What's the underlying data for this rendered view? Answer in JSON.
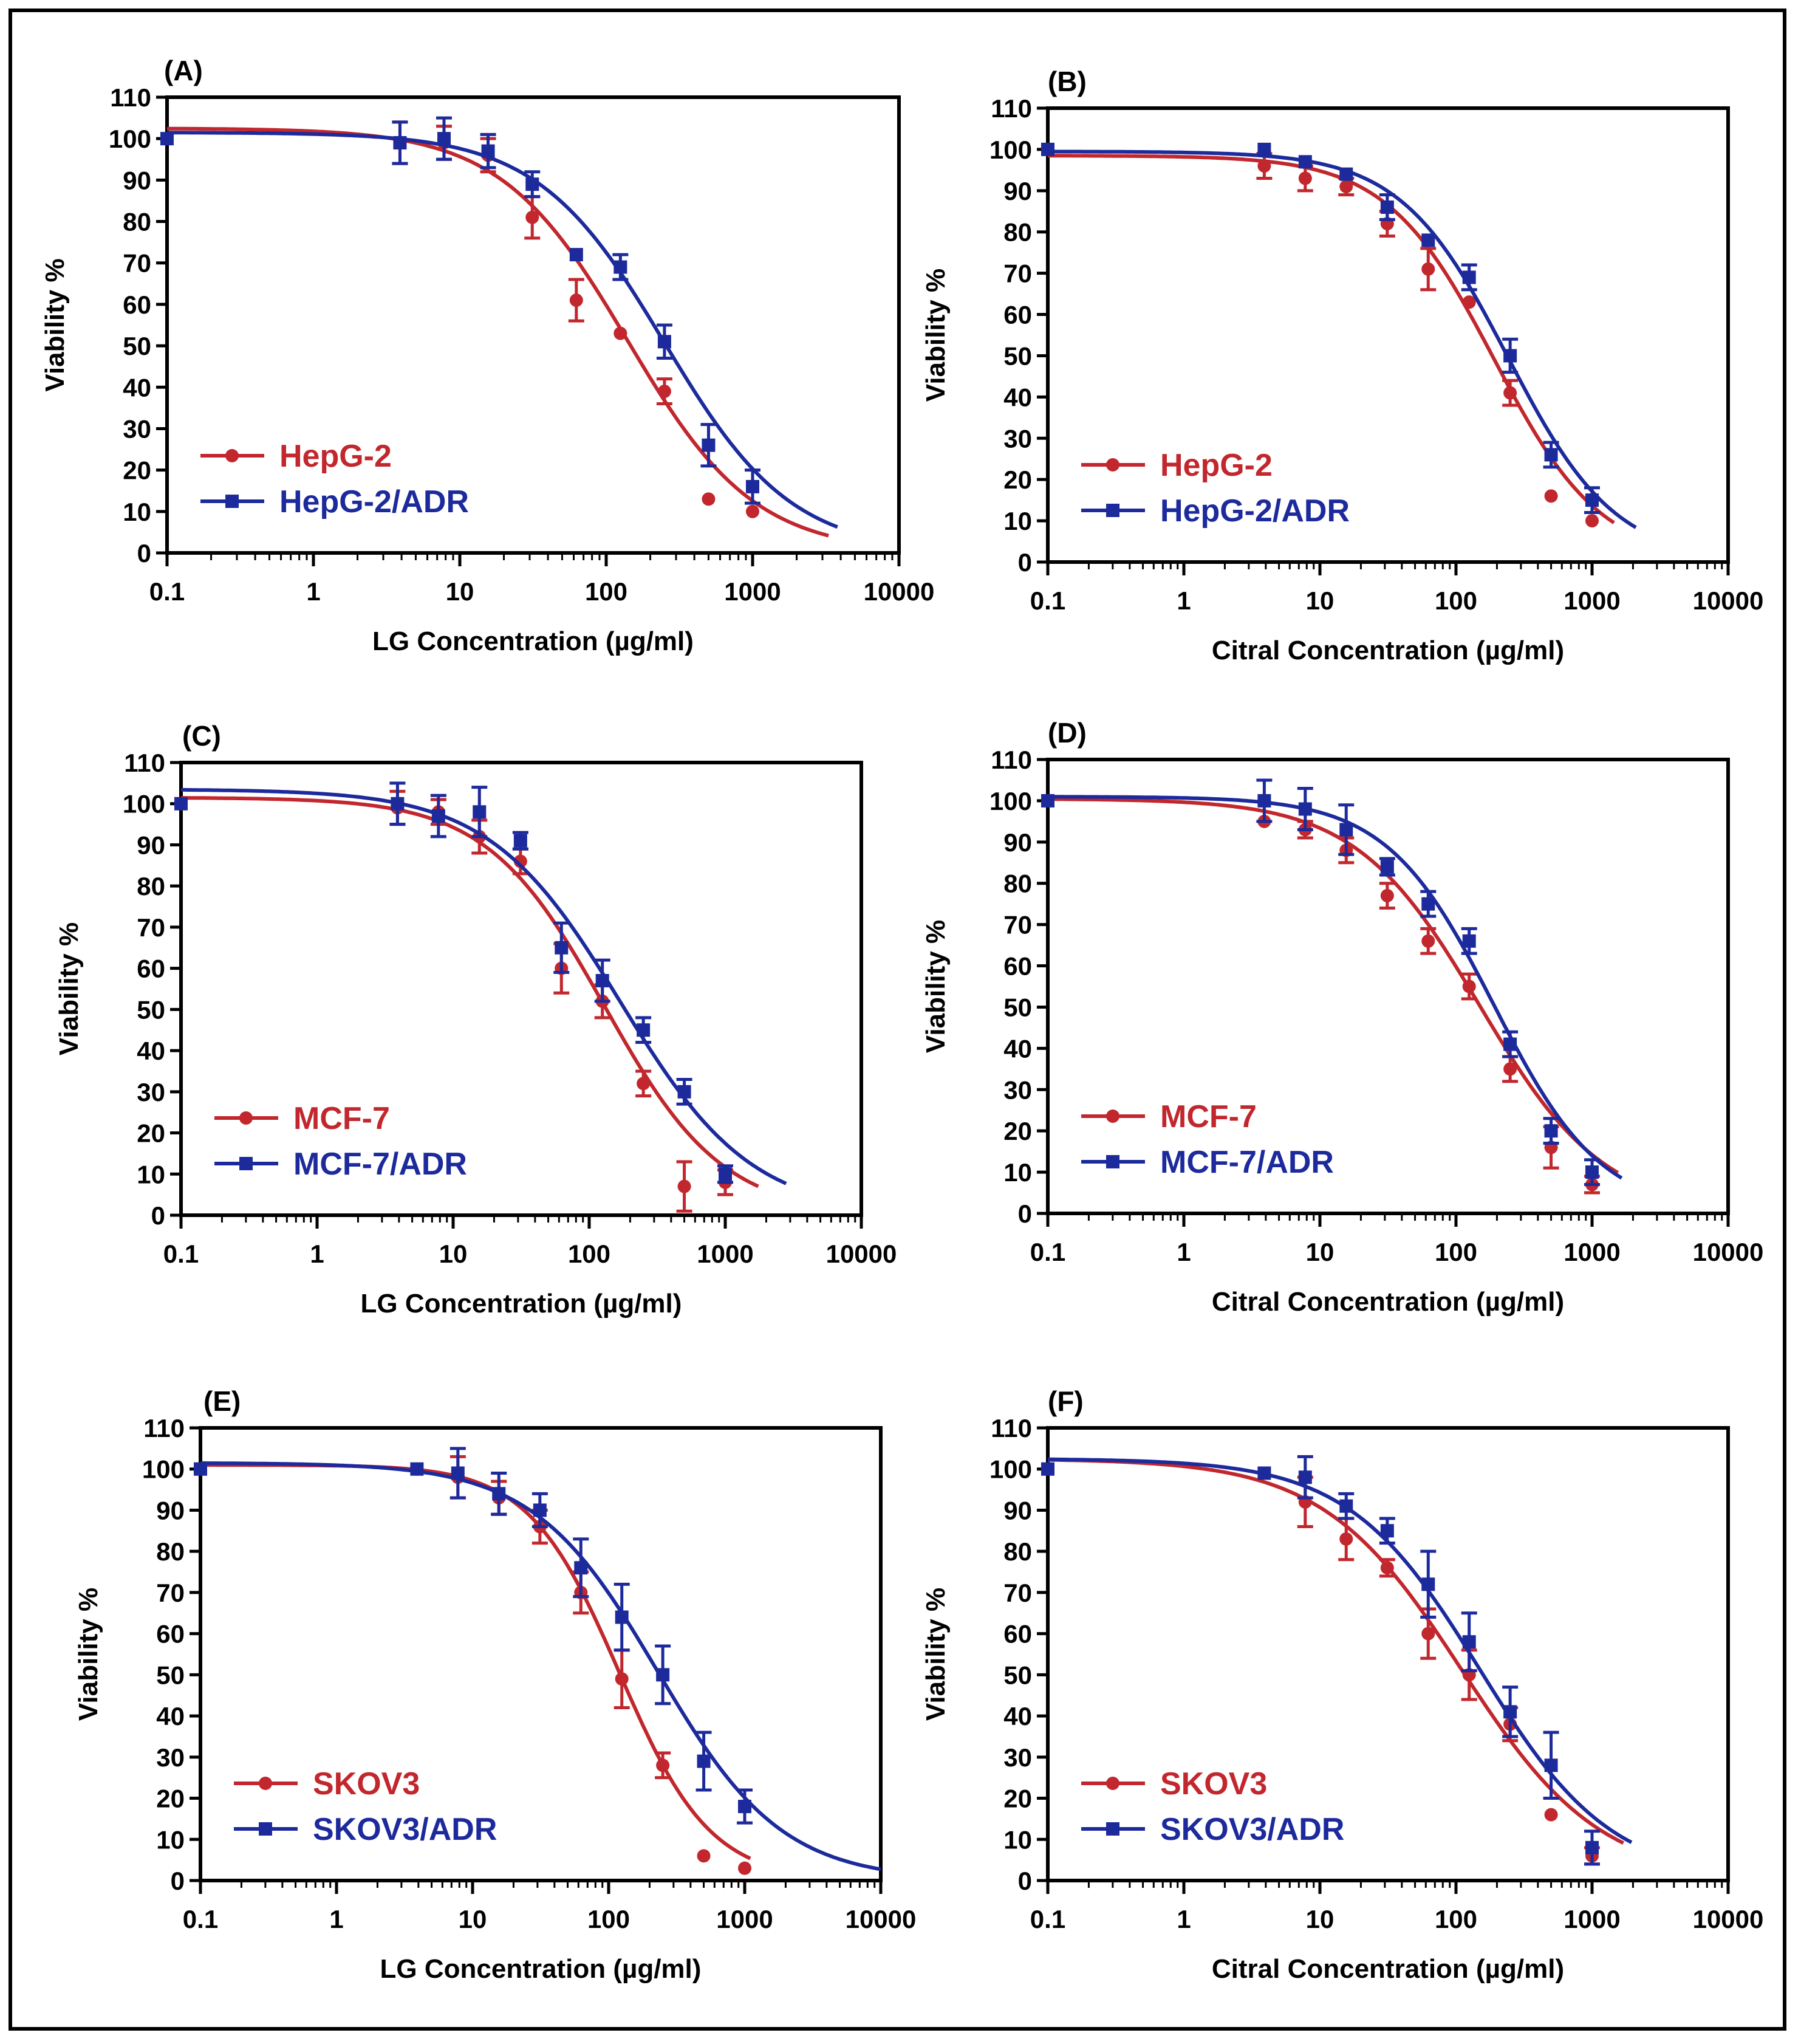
{
  "colors": {
    "red": "#c1272d",
    "blue": "#1c2a9c",
    "axis": "#000000"
  },
  "chart_data": [
    {
      "type": "scatter",
      "panel_label": "(A)",
      "xlabel": "LG Concentration (µg/ml)",
      "ylabel": "Viability %",
      "xscale": "log",
      "xlim": [
        0.1,
        10000
      ],
      "ylim": [
        0,
        110
      ],
      "xticks": [
        "0.1",
        "1",
        "10",
        "100",
        "1000",
        "10000"
      ],
      "yticks": [
        "0",
        "10",
        "20",
        "30",
        "40",
        "50",
        "60",
        "70",
        "80",
        "90",
        "100",
        "110"
      ],
      "legend_position": "bottom-left",
      "series": [
        {
          "name": "HepG-2",
          "color": "red",
          "marker": "circle",
          "fit": {
            "top": 102.5,
            "bottom": 0,
            "ic50": 140,
            "hill": 1.0,
            "x_end": 3300
          },
          "points": [
            [
              0.1,
              100,
              0
            ],
            [
              3.9,
              99,
              5
            ],
            [
              7.8,
              99,
              4
            ],
            [
              15.6,
              96,
              4
            ],
            [
              31.25,
              81,
              5
            ],
            [
              62.5,
              61,
              5
            ],
            [
              125,
              53,
              0
            ],
            [
              250,
              39,
              3
            ],
            [
              500,
              13,
              0
            ],
            [
              1000,
              10,
              0
            ]
          ]
        },
        {
          "name": "HepG-2/ADR",
          "color": "blue",
          "marker": "square",
          "fit": {
            "top": 101.5,
            "bottom": 0,
            "ic50": 250,
            "hill": 1.0,
            "x_end": 3800
          },
          "points": [
            [
              0.1,
              100,
              0
            ],
            [
              3.9,
              99,
              5
            ],
            [
              7.8,
              100,
              5
            ],
            [
              15.6,
              97,
              4
            ],
            [
              31.25,
              89,
              3
            ],
            [
              62.5,
              72,
              0
            ],
            [
              125,
              69,
              3
            ],
            [
              250,
              51,
              4
            ],
            [
              500,
              26,
              5
            ],
            [
              1000,
              16,
              4
            ]
          ]
        }
      ]
    },
    {
      "type": "scatter",
      "panel_label": "(B)",
      "xlabel": "Citral Concentration (µg/ml)",
      "ylabel": "Viability %",
      "xscale": "log",
      "xlim": [
        0.1,
        10000
      ],
      "ylim": [
        0,
        110
      ],
      "xticks": [
        "0.1",
        "1",
        "10",
        "100",
        "1000",
        "10000"
      ],
      "yticks": [
        "0",
        "10",
        "20",
        "30",
        "40",
        "50",
        "60",
        "70",
        "80",
        "90",
        "100",
        "110"
      ],
      "legend_position": "bottom-left",
      "series": [
        {
          "name": "HepG-2",
          "color": "red",
          "marker": "circle",
          "fit": {
            "top": 98.5,
            "bottom": 0,
            "ic50": 190,
            "hill": 1.1,
            "x_end": 1450
          },
          "points": [
            [
              0.1,
              100,
              0
            ],
            [
              3.9,
              96,
              3
            ],
            [
              7.8,
              93,
              3
            ],
            [
              15.6,
              91,
              2
            ],
            [
              31.25,
              82,
              3
            ],
            [
              62.5,
              71,
              5
            ],
            [
              125,
              63,
              0
            ],
            [
              250,
              41,
              3
            ],
            [
              500,
              16,
              0
            ],
            [
              1000,
              10,
              0
            ]
          ]
        },
        {
          "name": "HepG-2/ADR",
          "color": "blue",
          "marker": "square",
          "fit": {
            "top": 99.5,
            "bottom": 0,
            "ic50": 240,
            "hill": 1.1,
            "x_end": 2100
          },
          "points": [
            [
              0.1,
              100,
              0
            ],
            [
              3.9,
              100,
              0
            ],
            [
              7.8,
              97,
              0
            ],
            [
              15.6,
              94,
              0
            ],
            [
              31.25,
              86,
              3
            ],
            [
              62.5,
              78,
              0
            ],
            [
              125,
              69,
              3
            ],
            [
              250,
              50,
              4
            ],
            [
              500,
              26,
              3
            ],
            [
              1000,
              15,
              3
            ]
          ]
        }
      ]
    },
    {
      "type": "scatter",
      "panel_label": "(C)",
      "xlabel": "LG Concentration (µg/ml)",
      "ylabel": "Viability %",
      "xscale": "log",
      "xlim": [
        0.1,
        10000
      ],
      "ylim": [
        0,
        110
      ],
      "xticks": [
        "0.1",
        "1",
        "10",
        "100",
        "1000",
        "10000"
      ],
      "yticks": [
        "0",
        "10",
        "20",
        "30",
        "40",
        "50",
        "60",
        "70",
        "80",
        "90",
        "100",
        "110"
      ],
      "legend_position": "bottom-left",
      "series": [
        {
          "name": "MCF-7",
          "color": "red",
          "marker": "circle",
          "fit": {
            "top": 101.5,
            "bottom": 0,
            "ic50": 130,
            "hill": 1.0,
            "x_end": 1750
          },
          "points": [
            [
              0.1,
              100,
              0
            ],
            [
              3.9,
              99,
              4
            ],
            [
              7.8,
              98,
              3
            ],
            [
              15.6,
              92,
              4
            ],
            [
              31.25,
              86,
              3
            ],
            [
              62.5,
              60,
              6
            ],
            [
              125,
              52,
              4
            ],
            [
              250,
              32,
              3
            ],
            [
              500,
              7,
              6
            ],
            [
              1000,
              8,
              3
            ]
          ]
        },
        {
          "name": "MCF-7/ADR",
          "color": "blue",
          "marker": "square",
          "fit": {
            "top": 103.5,
            "bottom": 0,
            "ic50": 170,
            "hill": 0.9,
            "x_end": 2800
          },
          "points": [
            [
              0.1,
              100,
              0
            ],
            [
              3.9,
              100,
              5
            ],
            [
              7.8,
              97,
              5
            ],
            [
              15.6,
              98,
              6
            ],
            [
              31.25,
              91,
              2
            ],
            [
              62.5,
              65,
              6
            ],
            [
              125,
              57,
              5
            ],
            [
              250,
              45,
              3
            ],
            [
              500,
              30,
              3
            ],
            [
              1000,
              10,
              2
            ]
          ]
        }
      ]
    },
    {
      "type": "scatter",
      "panel_label": "(D)",
      "xlabel": "Citral Concentration (µg/ml)",
      "ylabel": "Viability %",
      "xscale": "log",
      "xlim": [
        0.1,
        10000
      ],
      "ylim": [
        0,
        110
      ],
      "xticks": [
        "0.1",
        "1",
        "10",
        "100",
        "1000",
        "10000"
      ],
      "yticks": [
        "0",
        "10",
        "20",
        "30",
        "40",
        "50",
        "60",
        "70",
        "80",
        "90",
        "100",
        "110"
      ],
      "legend_position": "bottom-left",
      "series": [
        {
          "name": "MCF-7",
          "color": "red",
          "marker": "circle",
          "fit": {
            "top": 100.5,
            "bottom": 0,
            "ic50": 150,
            "hill": 0.95,
            "x_end": 1550
          },
          "points": [
            [
              0.1,
              100,
              0
            ],
            [
              3.9,
              95,
              0
            ],
            [
              7.8,
              93,
              2
            ],
            [
              15.6,
              88,
              3
            ],
            [
              31.25,
              77,
              3
            ],
            [
              62.5,
              66,
              3
            ],
            [
              125,
              55,
              3
            ],
            [
              250,
              35,
              3
            ],
            [
              500,
              16,
              5
            ],
            [
              1000,
              7,
              2
            ]
          ]
        },
        {
          "name": "MCF-7/ADR",
          "color": "blue",
          "marker": "square",
          "fit": {
            "top": 101,
            "bottom": 0,
            "ic50": 190,
            "hill": 1.1,
            "x_end": 1650
          },
          "points": [
            [
              0.1,
              100,
              0
            ],
            [
              3.9,
              100,
              5
            ],
            [
              7.8,
              98,
              5
            ],
            [
              15.6,
              93,
              6
            ],
            [
              31.25,
              84,
              2
            ],
            [
              62.5,
              75,
              3
            ],
            [
              125,
              66,
              3
            ],
            [
              250,
              41,
              3
            ],
            [
              500,
              20,
              3
            ],
            [
              1000,
              10,
              3
            ]
          ]
        }
      ]
    },
    {
      "type": "scatter",
      "panel_label": "(E)",
      "xlabel": "LG Concentration (µg/ml)",
      "ylabel": "Viability %",
      "xscale": "log",
      "xlim": [
        0.1,
        10000
      ],
      "ylim": [
        0,
        110
      ],
      "xticks": [
        "0.1",
        "1",
        "10",
        "100",
        "1000",
        "10000"
      ],
      "yticks": [
        "0",
        "10",
        "20",
        "30",
        "40",
        "50",
        "60",
        "70",
        "80",
        "90",
        "100",
        "110"
      ],
      "legend_position": "bottom-left",
      "series": [
        {
          "name": "SKOV3",
          "color": "red",
          "marker": "circle",
          "fit": {
            "top": 101,
            "bottom": 0,
            "ic50": 120,
            "hill": 1.3,
            "x_end": 1100
          },
          "points": [
            [
              0.1,
              100,
              0
            ],
            [
              3.9,
              100,
              0
            ],
            [
              7.8,
              98,
              5
            ],
            [
              15.6,
              93,
              4
            ],
            [
              31.25,
              86,
              4
            ],
            [
              62.5,
              70,
              5
            ],
            [
              125,
              49,
              7
            ],
            [
              250,
              28,
              3
            ],
            [
              500,
              6,
              0
            ],
            [
              1000,
              3,
              0
            ]
          ]
        },
        {
          "name": "SKOV3/ADR",
          "color": "blue",
          "marker": "square",
          "fit": {
            "top": 101.5,
            "bottom": 0,
            "ic50": 230,
            "hill": 0.95,
            "x_end": 10000
          },
          "points": [
            [
              0.1,
              100,
              0
            ],
            [
              3.9,
              100,
              0
            ],
            [
              7.8,
              99,
              6
            ],
            [
              15.6,
              94,
              5
            ],
            [
              31.25,
              90,
              4
            ],
            [
              62.5,
              76,
              7
            ],
            [
              125,
              64,
              8
            ],
            [
              250,
              50,
              7
            ],
            [
              500,
              29,
              7
            ],
            [
              1000,
              18,
              4
            ]
          ]
        }
      ]
    },
    {
      "type": "scatter",
      "panel_label": "(F)",
      "xlabel": "Citral Concentration (µg/ml)",
      "ylabel": "Viability %",
      "xscale": "log",
      "xlim": [
        0.1,
        10000
      ],
      "ylim": [
        0,
        110
      ],
      "xticks": [
        "0.1",
        "1",
        "10",
        "100",
        "1000",
        "10000"
      ],
      "yticks": [
        "0",
        "10",
        "20",
        "30",
        "40",
        "50",
        "60",
        "70",
        "80",
        "90",
        "100",
        "110"
      ],
      "legend_position": "bottom-left",
      "series": [
        {
          "name": "SKOV3",
          "color": "red",
          "marker": "circle",
          "fit": {
            "top": 102.5,
            "bottom": 0,
            "ic50": 110,
            "hill": 0.85,
            "x_end": 1700
          },
          "points": [
            [
              0.1,
              100,
              0
            ],
            [
              3.9,
              99,
              0
            ],
            [
              7.8,
              92,
              6
            ],
            [
              15.6,
              83,
              5
            ],
            [
              31.25,
              76,
              2
            ],
            [
              62.5,
              60,
              6
            ],
            [
              125,
              50,
              6
            ],
            [
              250,
              38,
              4
            ],
            [
              500,
              16,
              0
            ],
            [
              1000,
              6,
              2
            ]
          ]
        },
        {
          "name": "SKOV3/ADR",
          "color": "blue",
          "marker": "square",
          "fit": {
            "top": 102.5,
            "bottom": 0,
            "ic50": 150,
            "hill": 0.9,
            "x_end": 1950
          },
          "points": [
            [
              0.1,
              100,
              0
            ],
            [
              3.9,
              99,
              0
            ],
            [
              7.8,
              98,
              5
            ],
            [
              15.6,
              91,
              3
            ],
            [
              31.25,
              85,
              3
            ],
            [
              62.5,
              72,
              8
            ],
            [
              125,
              58,
              7
            ],
            [
              250,
              41,
              6
            ],
            [
              500,
              28,
              8
            ],
            [
              1000,
              8,
              4
            ]
          ]
        }
      ]
    }
  ]
}
